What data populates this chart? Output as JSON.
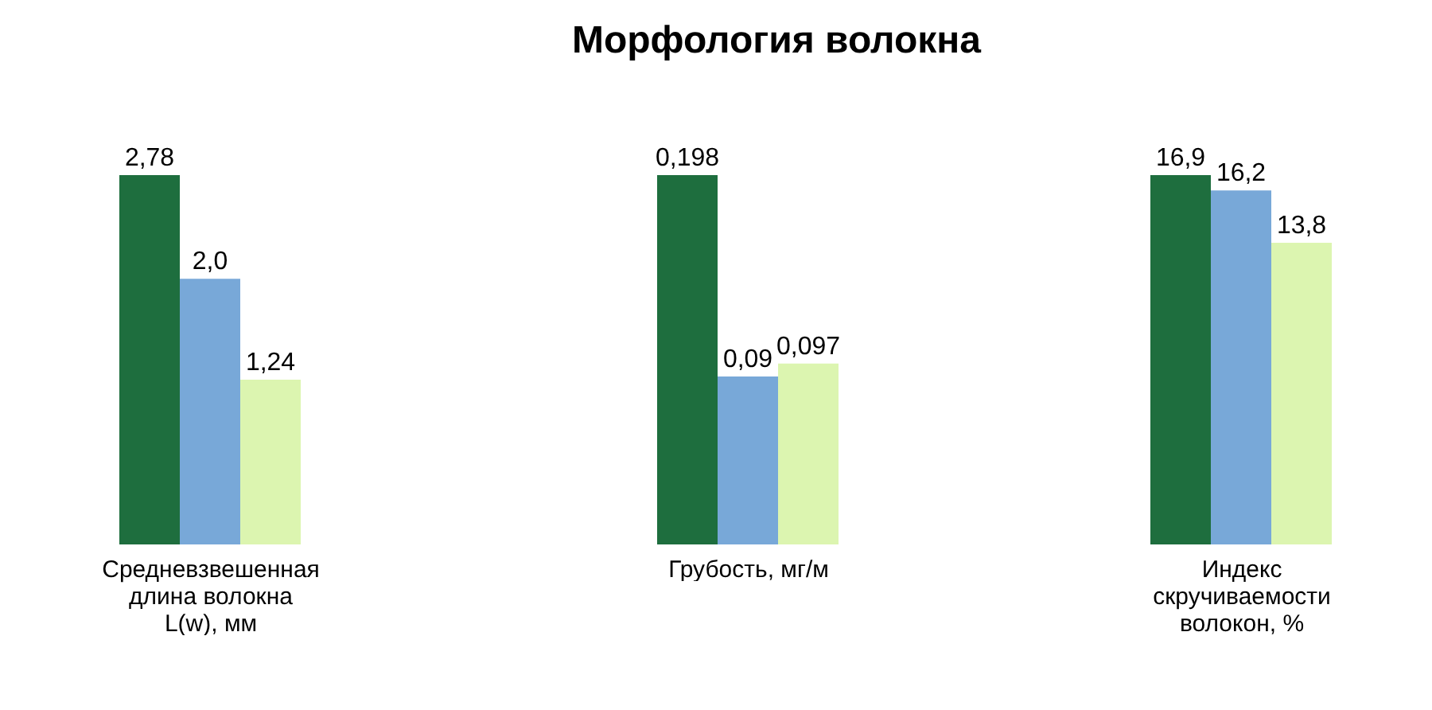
{
  "chart_data": [
    {
      "type": "bar",
      "xlabel": "Средневзвешенная длина волокна L(w), мм",
      "categories": [
        null,
        null,
        null
      ],
      "values": [
        2.78,
        2.0,
        1.24
      ],
      "value_labels": [
        "2,78",
        "2,0",
        "1,24"
      ],
      "colors": [
        "#1e6e3e",
        "#78a8d8",
        "#dcf5b0"
      ],
      "legend": false
    },
    {
      "type": "bar",
      "title": "Морфология волокна",
      "xlabel": "Грубость, мг/м",
      "categories": [
        null,
        null,
        null
      ],
      "values": [
        0.198,
        0.09,
        0.097
      ],
      "value_labels": [
        "0,198",
        "0,09",
        "0,097"
      ],
      "colors": [
        "#1e6e3e",
        "#78a8d8",
        "#dcf5b0"
      ],
      "legend": false
    },
    {
      "type": "bar",
      "xlabel": "Индекс скручиваемости волокон, %",
      "categories": [
        null,
        null,
        null
      ],
      "values": [
        16.9,
        16.2,
        13.8
      ],
      "value_labels": [
        "16,9",
        "16,2",
        "13,8"
      ],
      "colors": [
        "#1e6e3e",
        "#78a8d8",
        "#dcf5b0"
      ],
      "legend": false
    }
  ]
}
